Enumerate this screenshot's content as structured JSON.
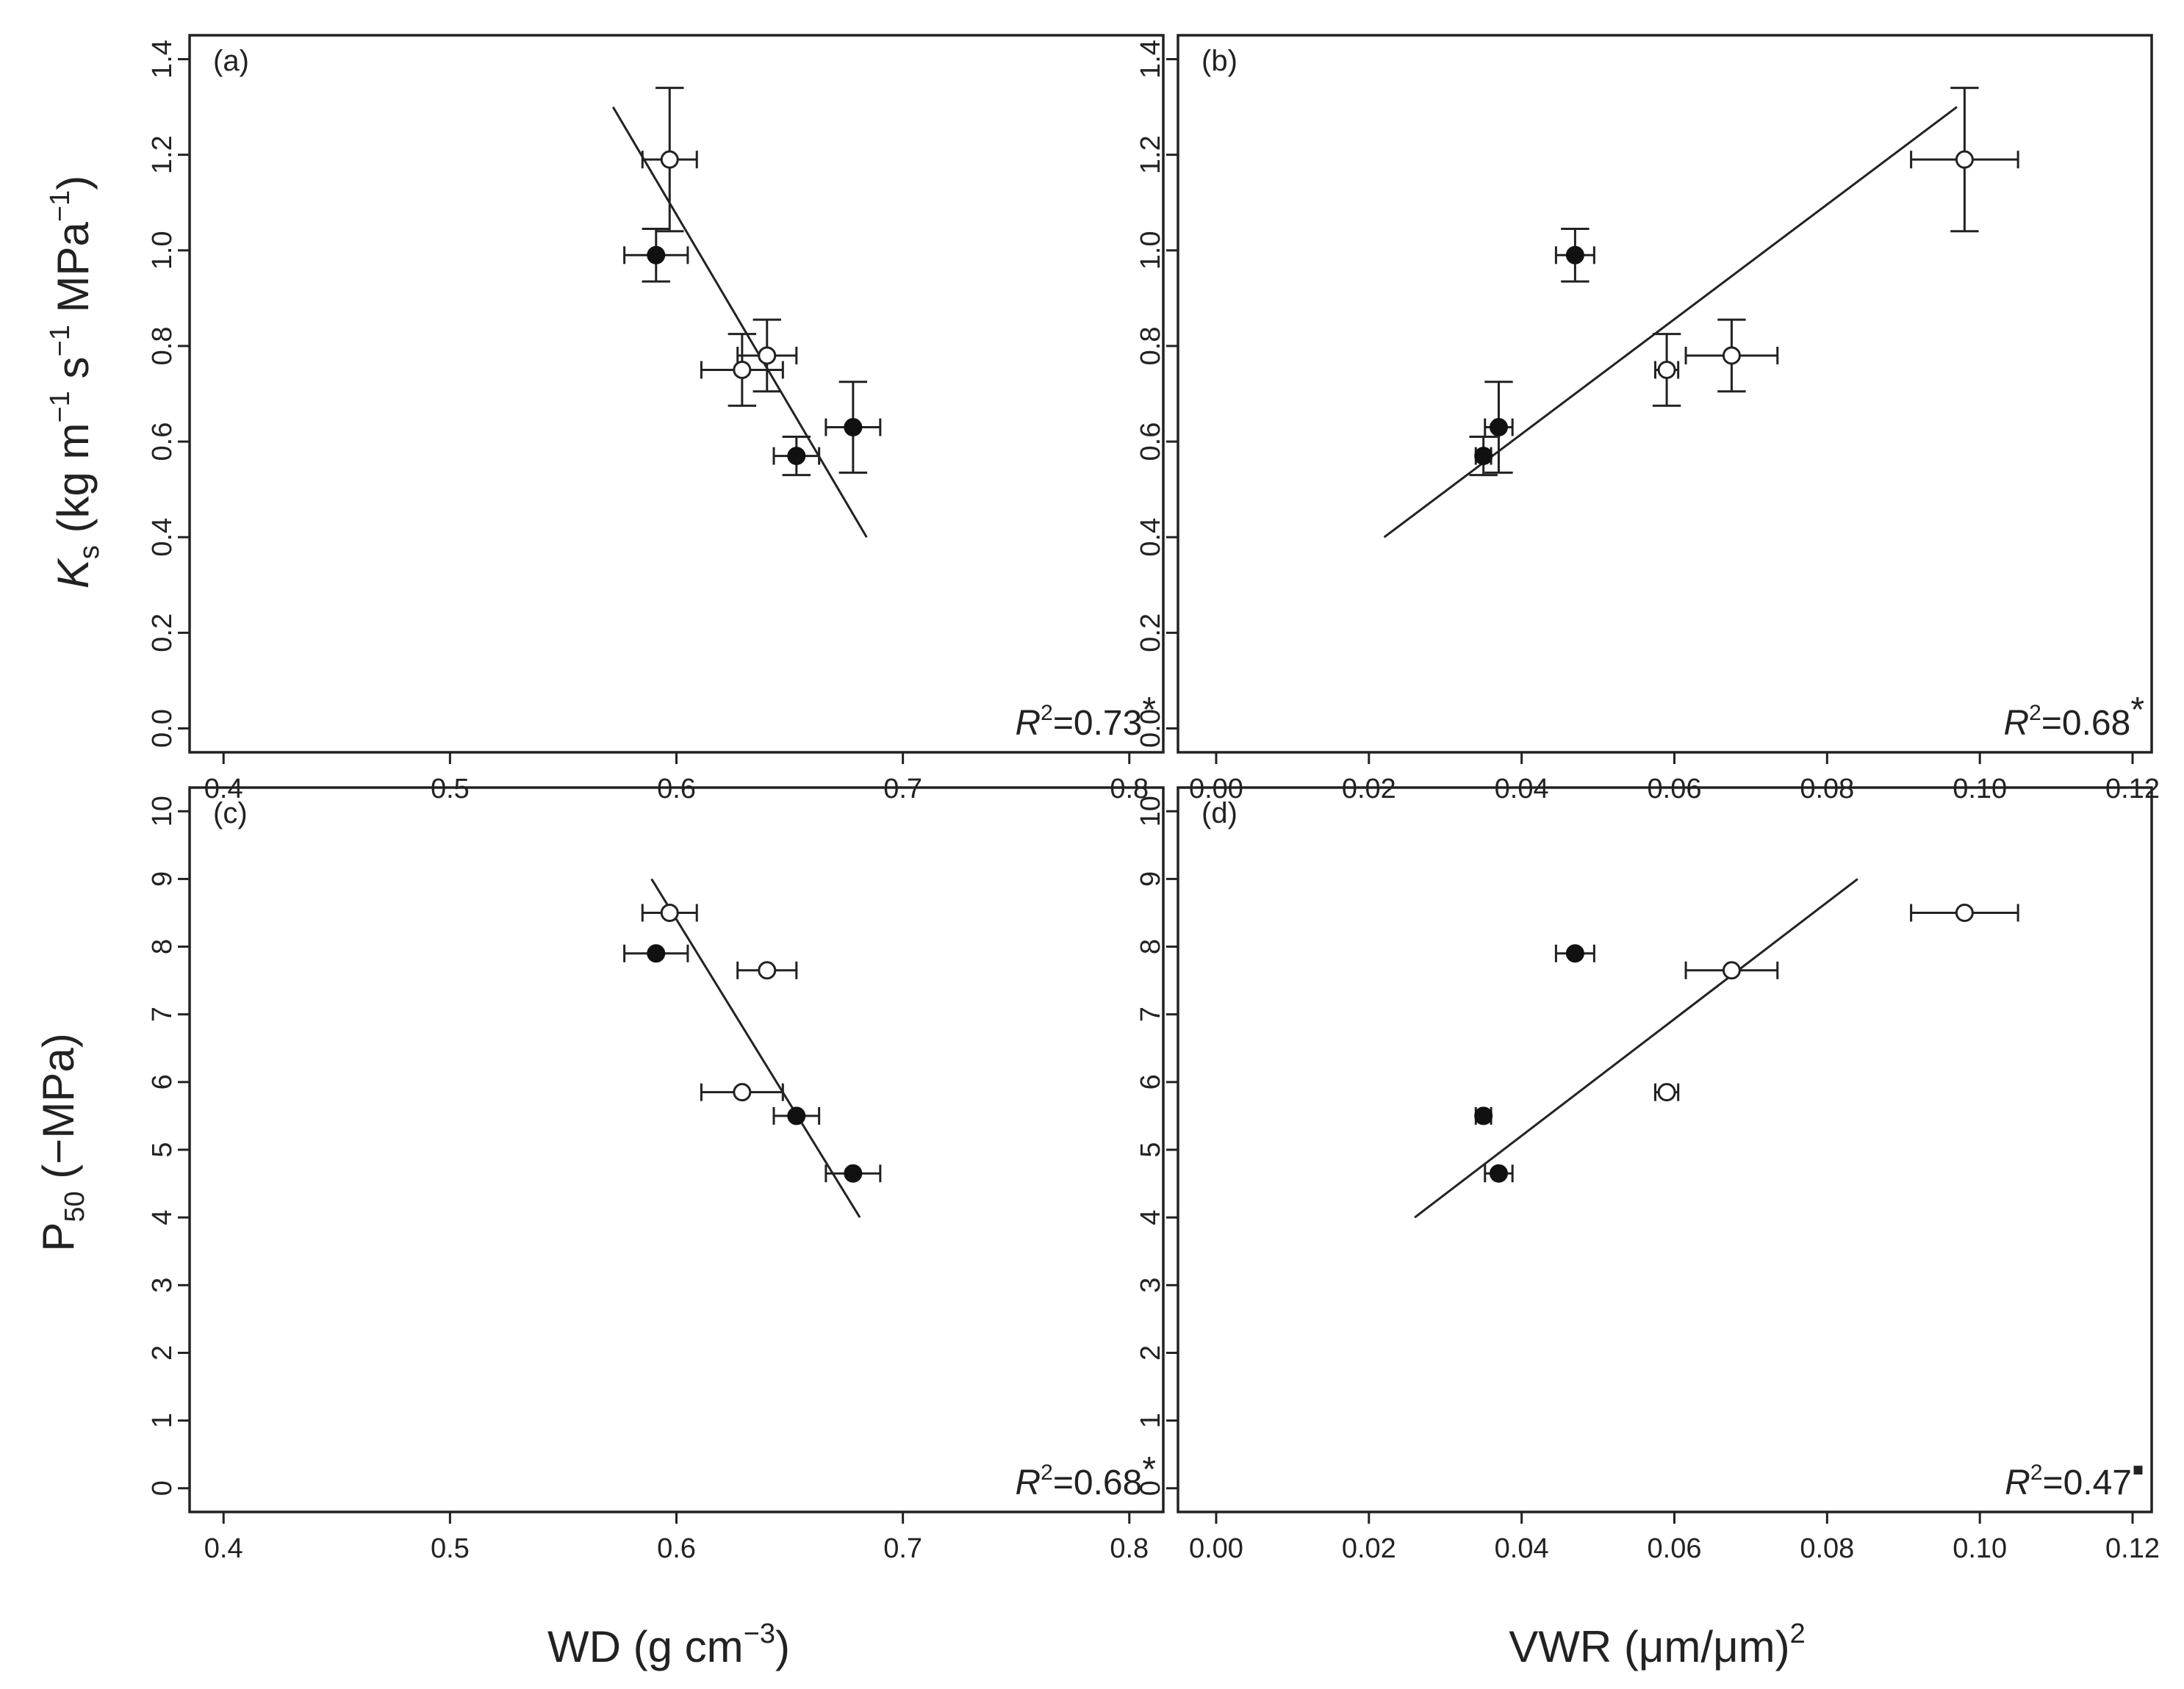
{
  "figure": {
    "xlabels": {
      "wd": {
        "main": "WD (g cm",
        "sup": "−3",
        "end": ")"
      },
      "vwr": {
        "main": "VWR (μm/μm)",
        "sup": "2"
      }
    },
    "ylabels": {
      "ks": {
        "k": "K",
        "sub": "s",
        "rest": " (kg m",
        "sup1": "−1",
        "mid": " s",
        "sup2": "−1",
        "mid2": " MPa",
        "sup3": "−1",
        "end": ")"
      },
      "p50": {
        "p": "P",
        "sub": "50",
        "rest": " (−MPa)"
      }
    }
  },
  "chart_data": [
    {
      "type": "scatter",
      "panel": "(a)",
      "xlabel": "WD (g cm−3)",
      "ylabel": "Ks (kg m−1 s−1 MPa−1)",
      "xlim": [
        0.385,
        0.815
      ],
      "ylim": [
        -0.05,
        1.45
      ],
      "xticks": [
        "0.4",
        "0.5",
        "0.6",
        "0.7",
        "0.8"
      ],
      "yticks": [
        "0.0",
        "0.2",
        "0.4",
        "0.6",
        "0.8",
        "1.0",
        "1.2",
        "1.4"
      ],
      "annotation": {
        "r": "R",
        "sup": "2",
        "value": "=0.73",
        "sig": "*"
      },
      "points": [
        {
          "x": 0.597,
          "y": 1.19,
          "xerr": 0.012,
          "yerr": 0.15,
          "marker": "open"
        },
        {
          "x": 0.591,
          "y": 0.99,
          "xerr": 0.014,
          "yerr": 0.055,
          "marker": "filled"
        },
        {
          "x": 0.64,
          "y": 0.78,
          "xerr": 0.013,
          "yerr": 0.075,
          "marker": "open"
        },
        {
          "x": 0.629,
          "y": 0.75,
          "xerr": 0.018,
          "yerr": 0.075,
          "marker": "open"
        },
        {
          "x": 0.678,
          "y": 0.63,
          "xerr": 0.012,
          "yerr": 0.095,
          "marker": "filled"
        },
        {
          "x": 0.653,
          "y": 0.57,
          "xerr": 0.01,
          "yerr": 0.04,
          "marker": "filled"
        }
      ],
      "fit": {
        "x1": 0.572,
        "y1": 1.3,
        "x2": 0.684,
        "y2": 0.4
      }
    },
    {
      "type": "scatter",
      "panel": "(b)",
      "xlabel": "VWR (μm/μm)2",
      "ylabel": "Ks (kg m−1 s−1 MPa−1)",
      "xlim": [
        -0.005,
        0.1225
      ],
      "ylim": [
        -0.05,
        1.45
      ],
      "xticks": [
        "0.00",
        "0.02",
        "0.04",
        "0.06",
        "0.08",
        "0.10",
        "0.12"
      ],
      "yticks": [
        "0.0",
        "0.2",
        "0.4",
        "0.6",
        "0.8",
        "1.0",
        "1.2",
        "1.4"
      ],
      "annotation": {
        "r": "R",
        "sup": "2",
        "value": "=0.68",
        "sig": "*"
      },
      "points": [
        {
          "x": 0.098,
          "y": 1.19,
          "xerr": 0.007,
          "yerr": 0.15,
          "marker": "open"
        },
        {
          "x": 0.047,
          "y": 0.99,
          "xerr": 0.0025,
          "yerr": 0.055,
          "marker": "filled"
        },
        {
          "x": 0.0675,
          "y": 0.78,
          "xerr": 0.006,
          "yerr": 0.075,
          "marker": "open"
        },
        {
          "x": 0.059,
          "y": 0.75,
          "xerr": 0.0015,
          "yerr": 0.075,
          "marker": "open"
        },
        {
          "x": 0.037,
          "y": 0.63,
          "xerr": 0.0018,
          "yerr": 0.095,
          "marker": "filled"
        },
        {
          "x": 0.035,
          "y": 0.57,
          "xerr": 0.001,
          "yerr": 0.04,
          "marker": "filled"
        }
      ],
      "fit": {
        "x1": 0.022,
        "y1": 0.4,
        "x2": 0.097,
        "y2": 1.3
      }
    },
    {
      "type": "scatter",
      "panel": "(c)",
      "xlabel": "WD (g cm−3)",
      "ylabel": "P50 (−MPa)",
      "xlim": [
        0.385,
        0.815
      ],
      "ylim": [
        -0.35,
        10.35
      ],
      "xticks": [
        "0.4",
        "0.5",
        "0.6",
        "0.7",
        "0.8"
      ],
      "yticks": [
        "0",
        "1",
        "2",
        "3",
        "4",
        "5",
        "6",
        "7",
        "8",
        "9",
        "10"
      ],
      "annotation": {
        "r": "R",
        "sup": "2",
        "value": "=0.68",
        "sig": "*"
      },
      "points": [
        {
          "x": 0.597,
          "y": 8.5,
          "xerr": 0.012,
          "yerr": 0,
          "marker": "open"
        },
        {
          "x": 0.591,
          "y": 7.9,
          "xerr": 0.014,
          "yerr": 0,
          "marker": "filled"
        },
        {
          "x": 0.64,
          "y": 7.65,
          "xerr": 0.013,
          "yerr": 0,
          "marker": "open"
        },
        {
          "x": 0.629,
          "y": 5.85,
          "xerr": 0.018,
          "yerr": 0,
          "marker": "open"
        },
        {
          "x": 0.653,
          "y": 5.5,
          "xerr": 0.01,
          "yerr": 0,
          "marker": "filled"
        },
        {
          "x": 0.678,
          "y": 4.65,
          "xerr": 0.012,
          "yerr": 0,
          "marker": "filled"
        }
      ],
      "fit": {
        "x1": 0.589,
        "y1": 9.0,
        "x2": 0.681,
        "y2": 4.0
      }
    },
    {
      "type": "scatter",
      "panel": "(d)",
      "xlabel": "VWR (μm/μm)2",
      "ylabel": "P50 (−MPa)",
      "xlim": [
        -0.005,
        0.1225
      ],
      "ylim": [
        -0.35,
        10.35
      ],
      "xticks": [
        "0.00",
        "0.02",
        "0.04",
        "0.06",
        "0.08",
        "0.10",
        "0.12"
      ],
      "yticks": [
        "0",
        "1",
        "2",
        "3",
        "4",
        "5",
        "6",
        "7",
        "8",
        "9",
        "10"
      ],
      "annotation": {
        "r": "R",
        "sup": "2",
        "value": "=0.47",
        "sig": "▪"
      },
      "points": [
        {
          "x": 0.098,
          "y": 8.5,
          "xerr": 0.007,
          "yerr": 0,
          "marker": "open"
        },
        {
          "x": 0.047,
          "y": 7.9,
          "xerr": 0.0025,
          "yerr": 0,
          "marker": "filled"
        },
        {
          "x": 0.0675,
          "y": 7.65,
          "xerr": 0.006,
          "yerr": 0,
          "marker": "open"
        },
        {
          "x": 0.059,
          "y": 5.85,
          "xerr": 0.0015,
          "yerr": 0,
          "marker": "open"
        },
        {
          "x": 0.035,
          "y": 5.5,
          "xerr": 0.001,
          "yerr": 0,
          "marker": "filled"
        },
        {
          "x": 0.037,
          "y": 4.65,
          "xerr": 0.0018,
          "yerr": 0,
          "marker": "filled"
        }
      ],
      "fit": {
        "x1": 0.026,
        "y1": 4.0,
        "x2": 0.084,
        "y2": 9.0
      }
    }
  ]
}
